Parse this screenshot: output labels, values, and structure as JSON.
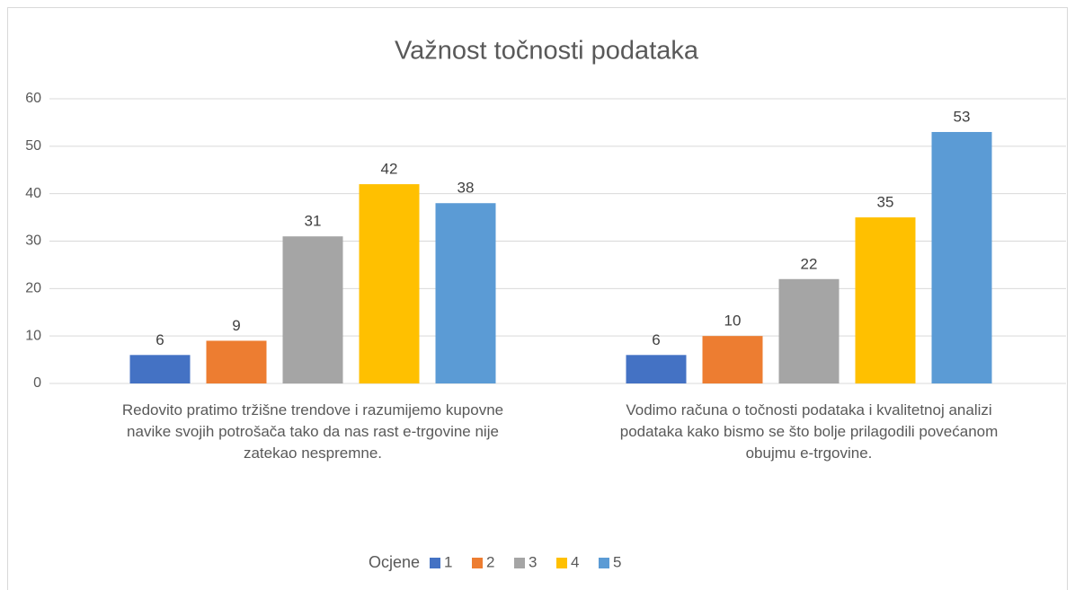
{
  "chart_data": {
    "type": "bar",
    "title": "Važnost točnosti podataka",
    "categories": [
      "Redovito pratimo tržišne trendove i razumijemo kupovne navike svojih potrošača tako da nas rast e-trgovine nije zatekao nespremne.",
      "Vodimo računa o točnosti podataka i kvalitetnoj analizi podataka kako bismo se što bolje prilagodili povećanom obujmu e-trgovine."
    ],
    "legend_title": "Ocjene",
    "series": [
      {
        "name": "1",
        "color": "#4472c4",
        "values": [
          6,
          6
        ]
      },
      {
        "name": "2",
        "color": "#ed7d31",
        "values": [
          9,
          10
        ]
      },
      {
        "name": "3",
        "color": "#a5a5a5",
        "values": [
          31,
          22
        ]
      },
      {
        "name": "4",
        "color": "#ffc000",
        "values": [
          42,
          35
        ]
      },
      {
        "name": "5",
        "color": "#5b9bd5",
        "values": [
          38,
          53
        ]
      }
    ],
    "ylim": [
      0,
      60
    ],
    "yticks": [
      0,
      10,
      20,
      30,
      40,
      50,
      60
    ],
    "grid": true,
    "legend": "bottom"
  }
}
